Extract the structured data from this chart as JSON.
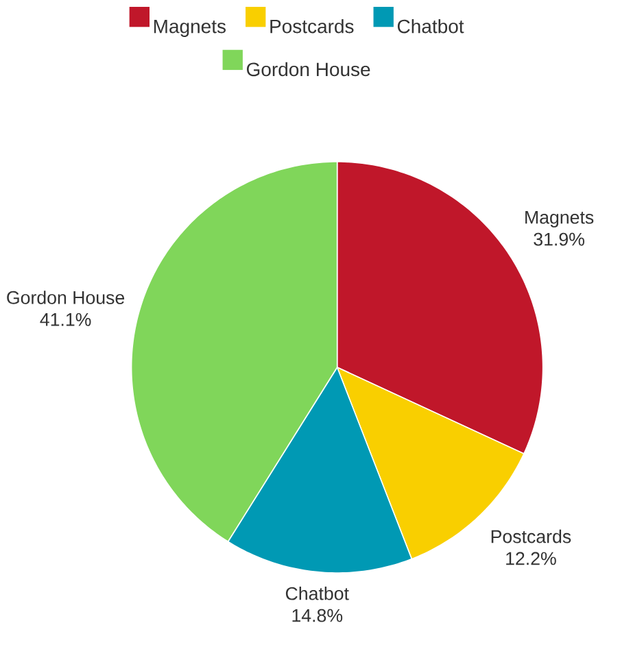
{
  "chart_data": {
    "type": "pie",
    "categories": [
      "Magnets",
      "Postcards",
      "Chatbot",
      "Gordon House"
    ],
    "values": [
      31.9,
      12.2,
      14.8,
      41.1
    ],
    "value_labels": [
      "31.9%",
      "12.2%",
      "14.8%",
      "41.1%"
    ],
    "colors": [
      "#c0172a",
      "#f9cf00",
      "#0099b4",
      "#80d65a"
    ],
    "legend": "top"
  }
}
